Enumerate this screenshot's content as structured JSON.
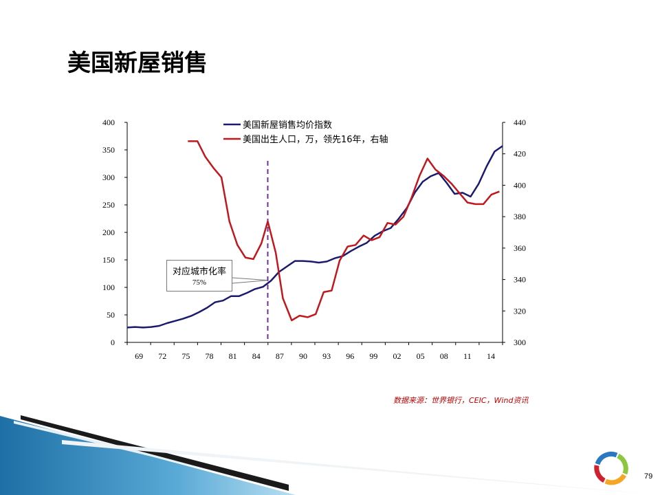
{
  "slide": {
    "title": "美国新屋销售",
    "source": "数据来源：世界银行，CEIC，Wind资讯",
    "page_number": "79"
  },
  "annotation": {
    "line1": "对应城市化率",
    "line2": "75%"
  },
  "colors": {
    "navy": "#1a1a6e",
    "red": "#c0181c",
    "dashed": "#7030a0"
  },
  "chart_data": {
    "type": "line",
    "title": "",
    "x_tick_labels": [
      "69",
      "72",
      "75",
      "78",
      "81",
      "84",
      "87",
      "90",
      "93",
      "96",
      "99",
      "02",
      "05",
      "08",
      "11",
      "14"
    ],
    "x_range": [
      1969,
      2016
    ],
    "vline_x": 1986.6,
    "left_axis": {
      "ylim": [
        0,
        400
      ],
      "ticks": [
        0,
        50,
        100,
        150,
        200,
        250,
        300,
        350,
        400
      ]
    },
    "right_axis": {
      "ylim": [
        300,
        440
      ],
      "ticks": [
        300,
        320,
        340,
        360,
        380,
        400,
        420,
        440
      ]
    },
    "series": [
      {
        "name": "美国新屋销售均价指数",
        "axis": "left",
        "color": "#1a1a6e",
        "points": [
          [
            1969,
            27
          ],
          [
            1970,
            28
          ],
          [
            1971,
            27
          ],
          [
            1972,
            28
          ],
          [
            1973,
            30
          ],
          [
            1974,
            35
          ],
          [
            1975,
            39
          ],
          [
            1976,
            43
          ],
          [
            1977,
            48
          ],
          [
            1978,
            55
          ],
          [
            1979,
            63
          ],
          [
            1980,
            73
          ],
          [
            1981,
            76
          ],
          [
            1982,
            84
          ],
          [
            1983,
            84
          ],
          [
            1984,
            90
          ],
          [
            1985,
            97
          ],
          [
            1986,
            101
          ],
          [
            1987,
            112
          ],
          [
            1988,
            128
          ],
          [
            1989,
            138
          ],
          [
            1990,
            148
          ],
          [
            1991,
            148
          ],
          [
            1992,
            147
          ],
          [
            1993,
            145
          ],
          [
            1994,
            147
          ],
          [
            1995,
            153
          ],
          [
            1996,
            157
          ],
          [
            1997,
            166
          ],
          [
            1998,
            174
          ],
          [
            1999,
            181
          ],
          [
            2000,
            194
          ],
          [
            2001,
            202
          ],
          [
            2002,
            208
          ],
          [
            2003,
            225
          ],
          [
            2004,
            244
          ],
          [
            2005,
            272
          ],
          [
            2006,
            292
          ],
          [
            2007,
            302
          ],
          [
            2008,
            308
          ],
          [
            2009,
            290
          ],
          [
            2010,
            270
          ],
          [
            2011,
            272
          ],
          [
            2012,
            265
          ],
          [
            2013,
            288
          ],
          [
            2014,
            320
          ],
          [
            2015,
            347
          ],
          [
            2016,
            357
          ]
        ]
      },
      {
        "name": "美国出生人口，万，领先16年，右轴",
        "axis": "right",
        "color": "#c0181c",
        "points": [
          [
            1976.6,
            428
          ],
          [
            1977.8,
            428
          ],
          [
            1978.8,
            418
          ],
          [
            1979.8,
            411
          ],
          [
            1980.8,
            405
          ],
          [
            1981.8,
            377
          ],
          [
            1982.8,
            362
          ],
          [
            1983.8,
            354
          ],
          [
            1984.8,
            353
          ],
          [
            1985.8,
            363
          ],
          [
            1986.6,
            377
          ],
          [
            1987.6,
            357
          ],
          [
            1988.5,
            328
          ],
          [
            1989.6,
            314
          ],
          [
            1990.6,
            317
          ],
          [
            1991.6,
            316
          ],
          [
            1992.6,
            318
          ],
          [
            1993.6,
            332
          ],
          [
            1994.6,
            333
          ],
          [
            1995.6,
            352
          ],
          [
            1996.6,
            361
          ],
          [
            1997.6,
            362
          ],
          [
            1998.6,
            368
          ],
          [
            1999.6,
            365
          ],
          [
            2000.6,
            367
          ],
          [
            2001.6,
            376
          ],
          [
            2002.6,
            375
          ],
          [
            2003.6,
            380
          ],
          [
            2004.6,
            392
          ],
          [
            2005.6,
            406
          ],
          [
            2006.6,
            417
          ],
          [
            2007.6,
            410
          ],
          [
            2008.6,
            406
          ],
          [
            2009.6,
            401
          ],
          [
            2010.6,
            395
          ],
          [
            2011.6,
            389
          ],
          [
            2012.6,
            388
          ],
          [
            2013.6,
            388
          ],
          [
            2014.6,
            394
          ],
          [
            2015.6,
            396
          ]
        ]
      }
    ]
  }
}
